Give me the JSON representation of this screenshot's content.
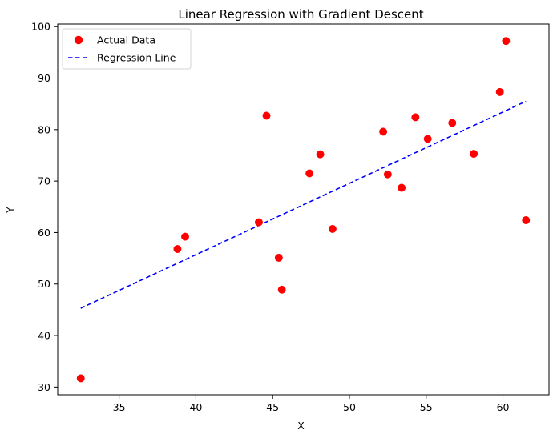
{
  "chart_data": {
    "type": "scatter",
    "title": "Linear Regression with Gradient Descent",
    "xlabel": "X",
    "ylabel": "Y",
    "xlim": [
      31,
      63
    ],
    "ylim": [
      28.5,
      100.5
    ],
    "xticks": [
      35,
      40,
      45,
      50,
      55,
      60
    ],
    "yticks": [
      30,
      40,
      50,
      60,
      70,
      80,
      90,
      100
    ],
    "grid": false,
    "legend_position": "top-left",
    "series": [
      {
        "name": "Actual Data",
        "kind": "scatter",
        "color": "#ff0000",
        "points": [
          {
            "x": 32.5,
            "y": 31.7
          },
          {
            "x": 38.8,
            "y": 56.8
          },
          {
            "x": 39.3,
            "y": 59.2
          },
          {
            "x": 44.1,
            "y": 62.0
          },
          {
            "x": 44.6,
            "y": 82.7
          },
          {
            "x": 45.4,
            "y": 55.1
          },
          {
            "x": 45.6,
            "y": 48.9
          },
          {
            "x": 47.4,
            "y": 71.5
          },
          {
            "x": 48.1,
            "y": 75.2
          },
          {
            "x": 48.9,
            "y": 60.7
          },
          {
            "x": 52.2,
            "y": 79.6
          },
          {
            "x": 52.5,
            "y": 71.3
          },
          {
            "x": 53.4,
            "y": 68.7
          },
          {
            "x": 54.3,
            "y": 82.4
          },
          {
            "x": 55.1,
            "y": 78.2
          },
          {
            "x": 56.7,
            "y": 81.3
          },
          {
            "x": 58.1,
            "y": 75.3
          },
          {
            "x": 59.8,
            "y": 87.3
          },
          {
            "x": 60.2,
            "y": 97.2
          },
          {
            "x": 61.5,
            "y": 62.4
          }
        ]
      },
      {
        "name": "Regression Line",
        "kind": "line",
        "style": "dashed",
        "color": "#0000ff",
        "points": [
          {
            "x": 32.5,
            "y": 45.3
          },
          {
            "x": 61.5,
            "y": 85.5
          }
        ]
      }
    ]
  }
}
